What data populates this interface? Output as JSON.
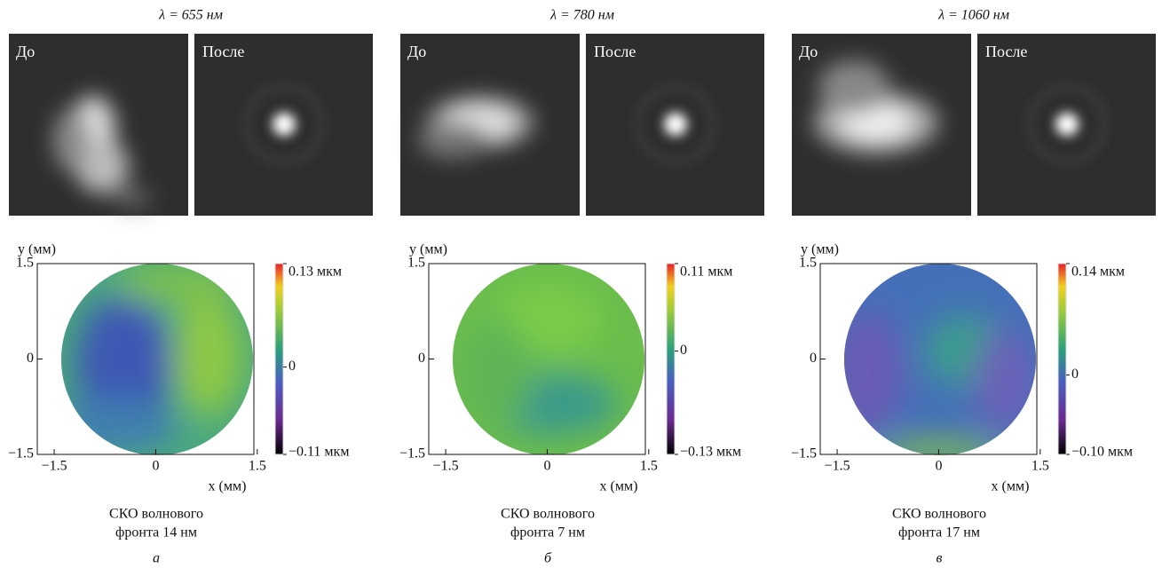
{
  "panels": [
    {
      "title": "λ = 655 нм",
      "before": "До",
      "after": "После",
      "y_label": "y (мм)",
      "x_label": "x (мм)",
      "xlim": [
        -1.75,
        1.45
      ],
      "ylim": [
        -1.5,
        1.5
      ],
      "xticks": [
        {
          "value": -1.5,
          "label": "−1.5"
        },
        0,
        1.5
      ],
      "yticks": [
        {
          "value": -1.5,
          "label": "−1.5"
        },
        0,
        1.5
      ],
      "colorbar": {
        "lim": [
          -0.11,
          0.13
        ],
        "ticks": [
          {
            "value": 0.13,
            "label": "0.13 мкм"
          },
          0,
          {
            "value": -0.11,
            "label": "−0.11 мкм"
          }
        ]
      },
      "caption": [
        "СКО волнового",
        "фронта 14 нм"
      ],
      "letter": "а"
    },
    {
      "title": "λ = 780 нм",
      "before": "До",
      "after": "После",
      "y_label": "y (мм)",
      "x_label": "x (мм)",
      "xlim": [
        -1.75,
        1.45
      ],
      "ylim": [
        -1.5,
        1.5
      ],
      "xticks": [
        {
          "value": -1.5,
          "label": "−1.5"
        },
        0,
        1.5
      ],
      "yticks": [
        {
          "value": -1.5,
          "label": "−1.5"
        },
        0,
        1.5
      ],
      "colorbar": {
        "lim": [
          -0.13,
          0.11
        ],
        "ticks": [
          {
            "value": 0.11,
            "label": "0.11 мкм"
          },
          0,
          {
            "value": -0.13,
            "label": "−0.13 мкм"
          }
        ]
      },
      "caption": [
        "СКО волнового",
        "фронта 7 нм"
      ],
      "letter": "б"
    },
    {
      "title": "λ = 1060 нм",
      "before": "До",
      "after": "После",
      "y_label": "y (мм)",
      "x_label": "x (мм)",
      "xlim": [
        -1.75,
        1.45
      ],
      "ylim": [
        -1.5,
        1.5
      ],
      "xticks": [
        {
          "value": -1.5,
          "label": "−1.5"
        },
        0,
        1.5
      ],
      "yticks": [
        {
          "value": -1.5,
          "label": "−1.5"
        },
        0,
        1.5
      ],
      "colorbar": {
        "lim": [
          -0.1,
          0.14
        ],
        "ticks": [
          {
            "value": 0.14,
            "label": "0.14 мкм"
          },
          0,
          {
            "value": -0.1,
            "label": "−0.10 мкм"
          }
        ]
      },
      "caption": [
        "СКО волнового",
        "фронта 17 нм"
      ],
      "letter": "в"
    }
  ]
}
